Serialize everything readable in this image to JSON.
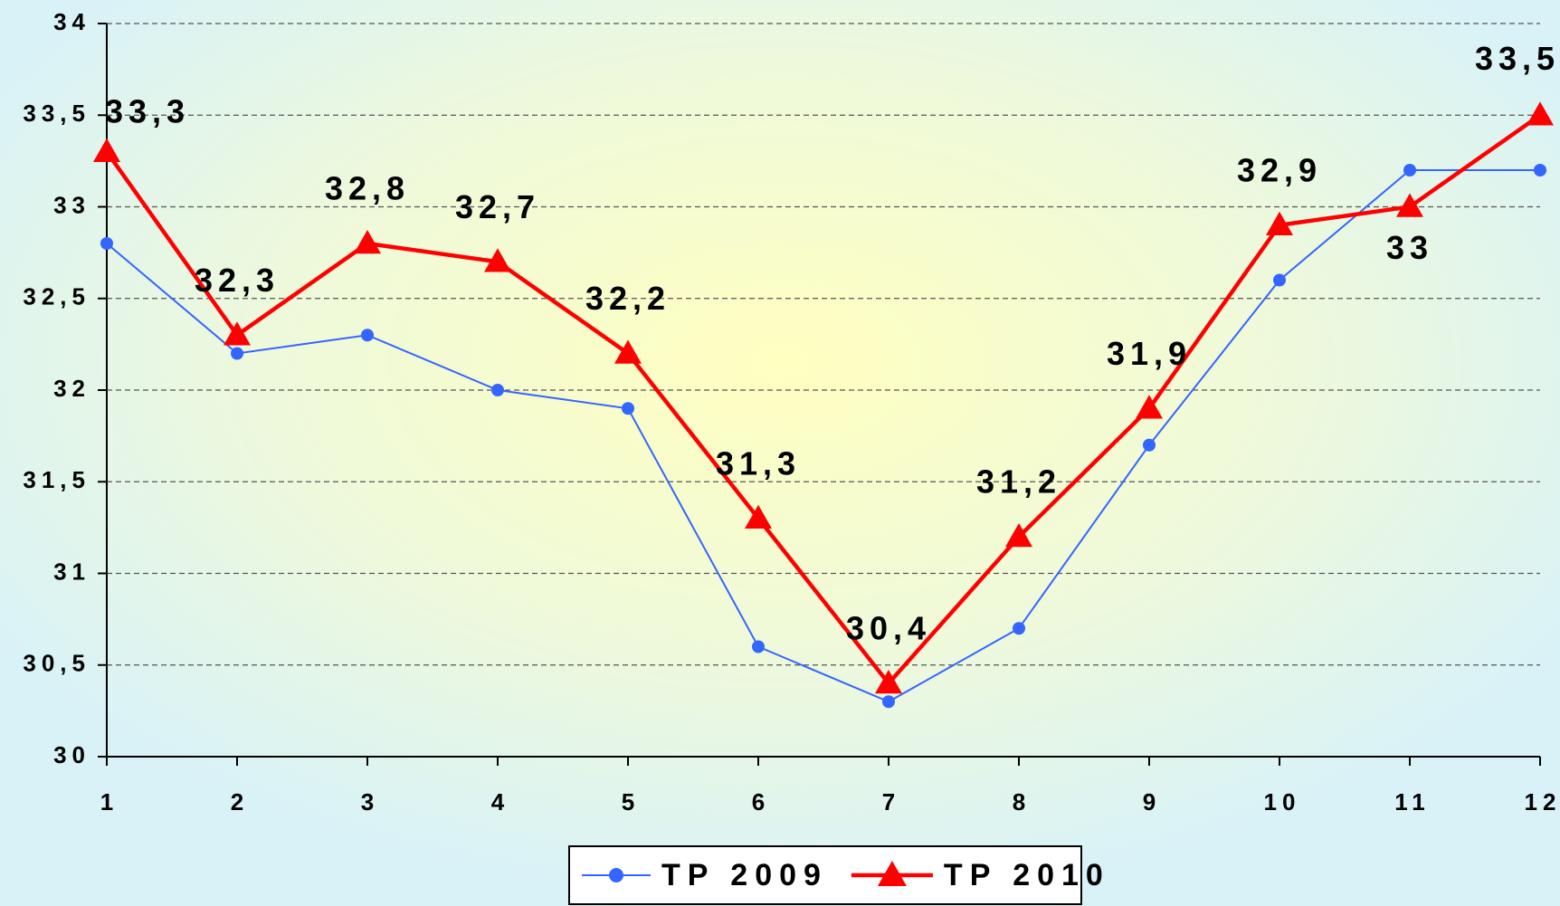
{
  "chart_data": {
    "type": "line",
    "x": [
      1,
      2,
      3,
      4,
      5,
      6,
      7,
      8,
      9,
      10,
      11,
      12
    ],
    "xlim": [
      1,
      12
    ],
    "xticks": [
      1,
      2,
      3,
      4,
      5,
      6,
      7,
      8,
      9,
      10,
      11,
      12
    ],
    "ylim": [
      30,
      34
    ],
    "yticks": [
      30,
      {
        "value": 30.5,
        "label": "30,5"
      },
      31,
      {
        "value": 31.5,
        "label": "31,5"
      },
      32,
      {
        "value": 32.5,
        "label": "32,5"
      },
      33,
      {
        "value": 33.5,
        "label": "33,5"
      },
      34
    ],
    "grid": true,
    "legend": "bottom",
    "series": [
      {
        "name": "TP 2009",
        "color": "#3366ff",
        "marker": "circle",
        "values": [
          32.8,
          32.2,
          32.3,
          32.0,
          31.9,
          30.6,
          30.3,
          30.7,
          31.7,
          32.6,
          33.2,
          33.2
        ]
      },
      {
        "name": "TP 2010",
        "color": "#ff0000",
        "marker": "triangle",
        "values": [
          33.3,
          32.3,
          32.8,
          32.7,
          32.2,
          31.3,
          30.4,
          31.2,
          31.9,
          32.9,
          33.0,
          33.5
        ],
        "value_labels": [
          "33,3",
          "32,3",
          "32,8",
          "32,7",
          "32,2",
          "31,3",
          "30,4",
          "31,2",
          "31,9",
          "32,9",
          "33",
          "33,5"
        ]
      }
    ]
  }
}
